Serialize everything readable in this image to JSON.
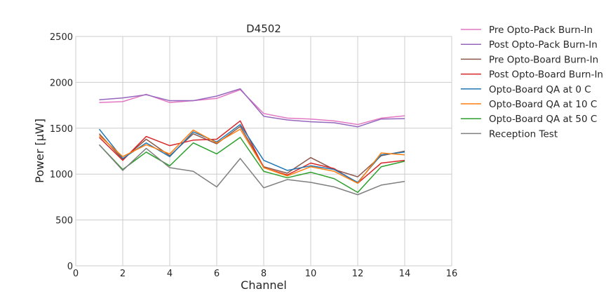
{
  "chart_data": {
    "type": "line",
    "title": "D4502",
    "xlabel": "Channel",
    "ylabel": "Power [μW]",
    "xlim": [
      0,
      16
    ],
    "ylim": [
      0,
      2500
    ],
    "xticks": [
      0,
      2,
      4,
      6,
      8,
      10,
      12,
      14,
      16
    ],
    "yticks": [
      0,
      500,
      1000,
      1500,
      2000,
      2500
    ],
    "grid": true,
    "legend_position": "outside-right",
    "x": [
      1,
      2,
      3,
      4,
      5,
      6,
      7,
      8,
      9,
      10,
      11,
      12,
      13,
      14
    ],
    "series": [
      {
        "name": "Pre Opto-Pack Burn-In",
        "color": "#e377c2",
        "values": [
          1780,
          1790,
          1870,
          1780,
          1800,
          1825,
          1920,
          1660,
          1610,
          1600,
          1580,
          1540,
          1610,
          1635
        ]
      },
      {
        "name": "Post Opto-Pack Burn-In",
        "color": "#9467bd",
        "values": [
          1810,
          1830,
          1865,
          1800,
          1800,
          1850,
          1930,
          1630,
          1590,
          1570,
          1560,
          1515,
          1600,
          1605
        ]
      },
      {
        "name": "Pre Opto-Board Burn-In",
        "color": "#8c564b",
        "values": [
          1440,
          1160,
          1380,
          1200,
          1440,
          1330,
          1520,
          1080,
          1010,
          1180,
          1050,
          970,
          1200,
          1250
        ]
      },
      {
        "name": "Post Opto-Board Burn-In",
        "color": "#d62728",
        "values": [
          1400,
          1150,
          1410,
          1310,
          1370,
          1380,
          1580,
          1070,
          990,
          1120,
          1060,
          900,
          1120,
          1150
        ]
      },
      {
        "name": "Opto-Board QA at 0 C",
        "color": "#1f77b4",
        "values": [
          1490,
          1170,
          1340,
          1190,
          1460,
          1350,
          1540,
          1150,
          1040,
          1090,
          1050,
          910,
          1210,
          1240
        ]
      },
      {
        "name": "Opto-Board QA at 10 C",
        "color": "#ff7f0e",
        "values": [
          1420,
          1190,
          1320,
          1220,
          1480,
          1340,
          1490,
          1070,
          980,
          1080,
          1030,
          900,
          1230,
          1210
        ]
      },
      {
        "name": "Opto-Board QA at 50 C",
        "color": "#2ca02c",
        "values": [
          1320,
          1050,
          1240,
          1090,
          1340,
          1220,
          1400,
          1030,
          960,
          1020,
          950,
          800,
          1080,
          1140
        ]
      },
      {
        "name": "Reception Test",
        "color": "#7f7f7f",
        "values": [
          1320,
          1040,
          1280,
          1070,
          1030,
          860,
          1170,
          850,
          940,
          910,
          860,
          775,
          880,
          920
        ]
      }
    ]
  }
}
